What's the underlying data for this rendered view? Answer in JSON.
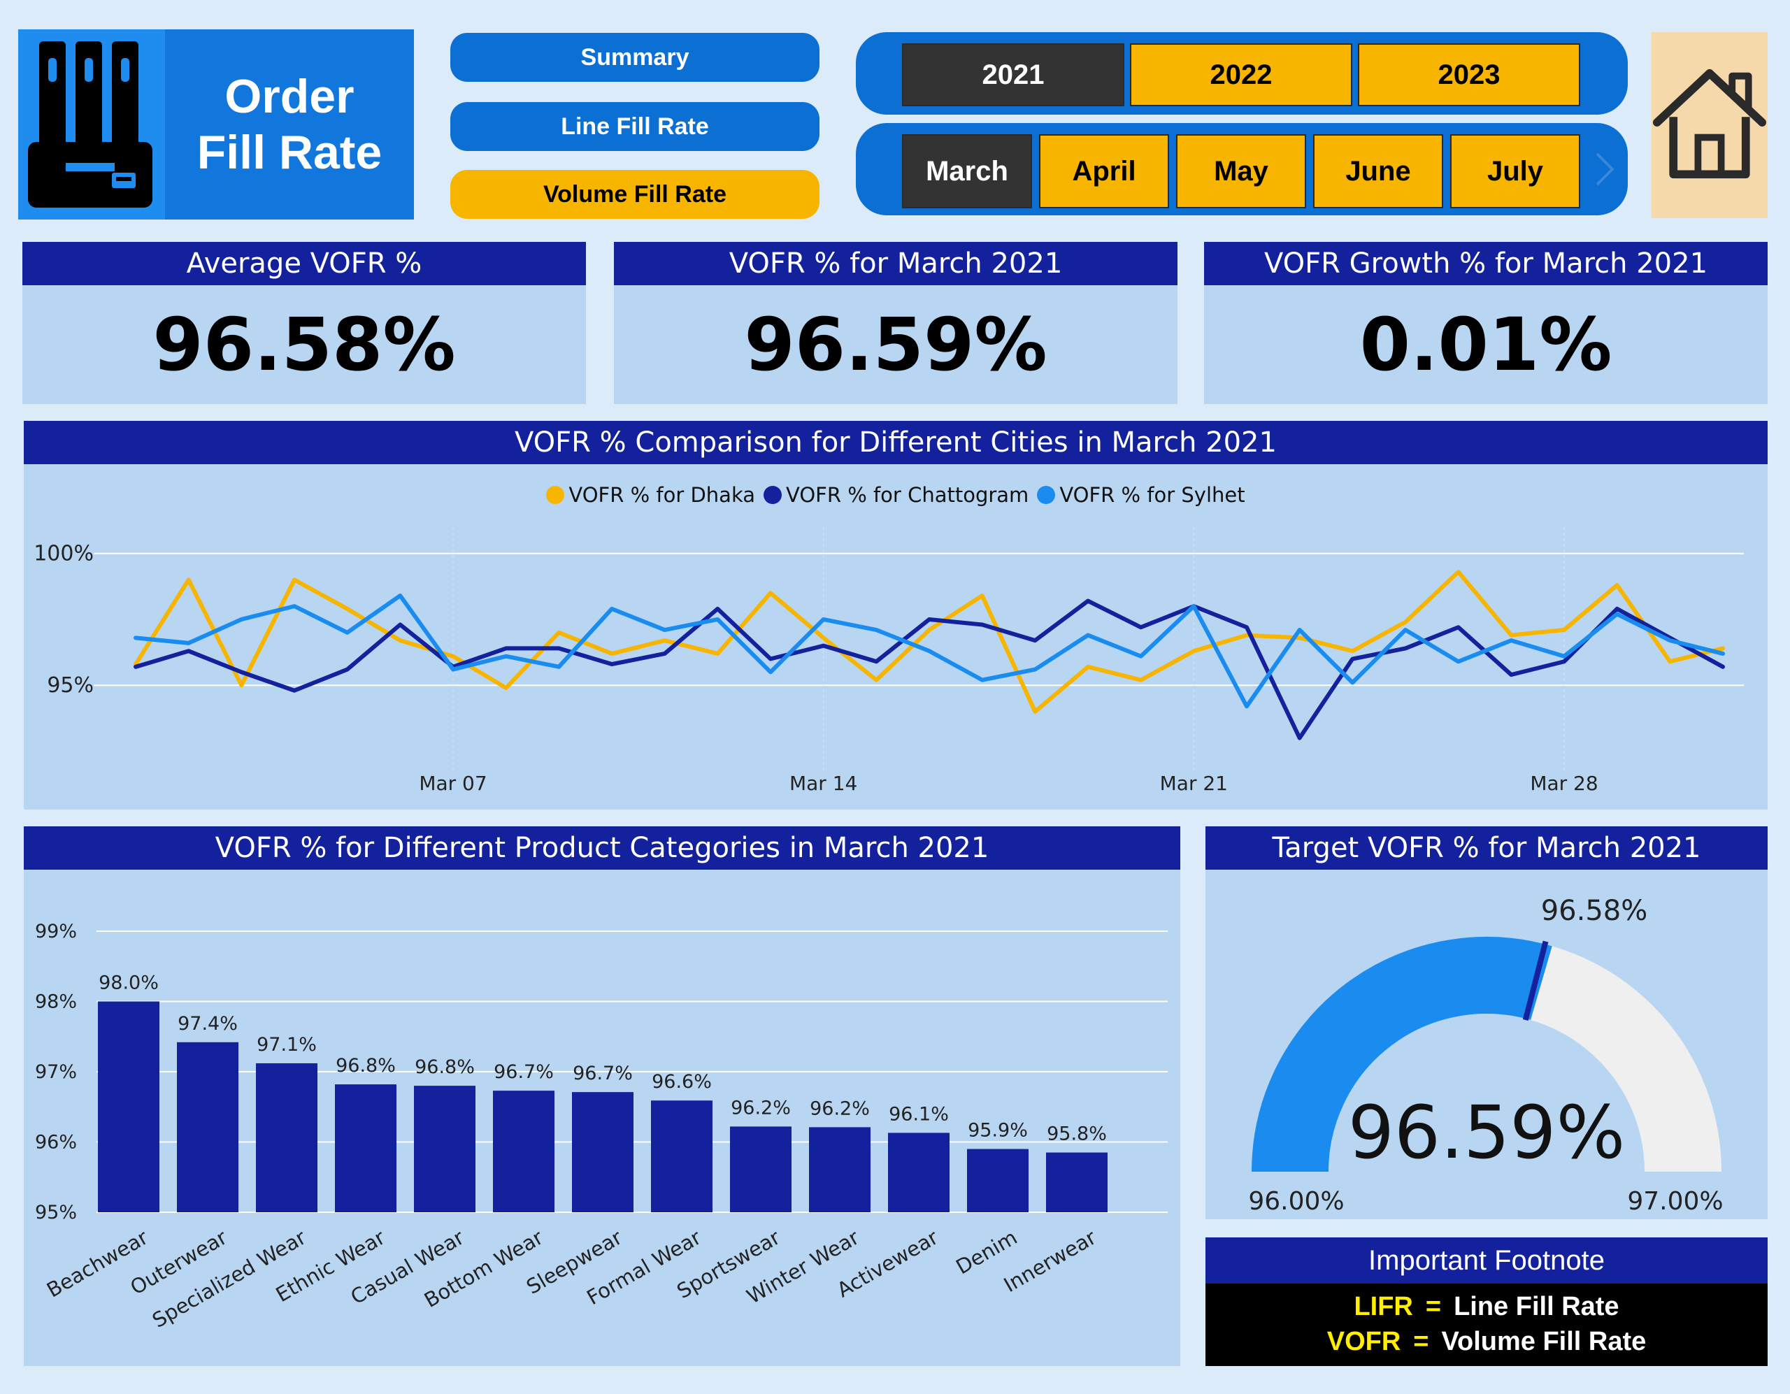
{
  "header": {
    "title_line1": "Order",
    "title_line2": "Fill Rate",
    "nav": [
      {
        "label": "Summary",
        "state": "inactive"
      },
      {
        "label": "Line Fill Rate",
        "state": "inactive"
      },
      {
        "label": "Volume Fill Rate",
        "state": "active"
      }
    ],
    "years": [
      "2021",
      "2022",
      "2023"
    ],
    "selected_year": "2021",
    "months": [
      "March",
      "April",
      "May",
      "June",
      "July"
    ],
    "selected_month": "March",
    "next_icon": "chevron-right-icon",
    "home_icon": "house-icon"
  },
  "kpis": [
    {
      "title": "Average VOFR %",
      "value": "96.58%"
    },
    {
      "title": "VOFR % for March 2021",
      "value": "96.59%"
    },
    {
      "title": "VOFR Growth % for March 2021",
      "value": "0.01%"
    }
  ],
  "colors": {
    "dhaka": "#f7b500",
    "chattogram": "#13219d",
    "sylhet": "#1a8cf0",
    "bar": "#13219d",
    "gauge_fill": "#1a8cf0",
    "gauge_empty": "#efefef",
    "gauge_marker": "#13219d"
  },
  "line_panel": {
    "title": "VOFR % Comparison for Different Cities in March 2021"
  },
  "bar_panel": {
    "title": "VOFR % for Different Product Categories in March 2021"
  },
  "gauge_panel": {
    "title": "Target VOFR % for March 2021"
  },
  "footnote": {
    "title": "Important Footnote",
    "items": [
      {
        "key": "LIFR",
        "eq": "=",
        "value": "Line Fill Rate"
      },
      {
        "key": "VOFR",
        "eq": "=",
        "value": "Volume Fill Rate"
      }
    ]
  },
  "chart_data": [
    {
      "type": "line",
      "title": "VOFR % Comparison for Different Cities in March 2021",
      "x": [
        "Mar 01",
        "Mar 02",
        "Mar 03",
        "Mar 04",
        "Mar 05",
        "Mar 06",
        "Mar 07",
        "Mar 08",
        "Mar 09",
        "Mar 10",
        "Mar 11",
        "Mar 12",
        "Mar 13",
        "Mar 14",
        "Mar 15",
        "Mar 16",
        "Mar 17",
        "Mar 18",
        "Mar 19",
        "Mar 20",
        "Mar 21",
        "Mar 22",
        "Mar 23",
        "Mar 24",
        "Mar 25",
        "Mar 26",
        "Mar 27",
        "Mar 28",
        "Mar 29",
        "Mar 30",
        "Mar 31"
      ],
      "x_ticks": [
        "Mar 07",
        "Mar 14",
        "Mar 21",
        "Mar 28"
      ],
      "y_ticks": [
        "100%",
        "95%"
      ],
      "ylim": [
        92.3,
        101.0
      ],
      "y_tick_values": [
        100,
        95
      ],
      "grid": true,
      "legend_position": "top-center",
      "series": [
        {
          "name": "VOFR % for Dhaka",
          "values": [
            95.8,
            99.0,
            95.0,
            99.0,
            97.9,
            96.7,
            96.1,
            94.9,
            97.0,
            96.2,
            96.7,
            96.2,
            98.5,
            96.8,
            95.2,
            97.1,
            98.4,
            94.0,
            95.7,
            95.2,
            96.3,
            96.9,
            96.8,
            96.3,
            97.4,
            99.3,
            96.9,
            97.1,
            98.8,
            95.9,
            96.4
          ]
        },
        {
          "name": "VOFR % for Chattogram",
          "values": [
            95.7,
            96.3,
            95.5,
            94.8,
            95.6,
            97.3,
            95.7,
            96.4,
            96.4,
            95.8,
            96.2,
            97.9,
            96.0,
            96.5,
            95.9,
            97.5,
            97.3,
            96.7,
            98.2,
            97.2,
            98.0,
            97.2,
            93.0,
            96.0,
            96.4,
            97.2,
            95.4,
            95.9,
            97.9,
            96.8,
            95.7
          ]
        },
        {
          "name": "VOFR % for Sylhet",
          "values": [
            96.8,
            96.6,
            97.5,
            98.0,
            97.0,
            98.4,
            95.6,
            96.1,
            95.7,
            97.9,
            97.1,
            97.5,
            95.5,
            97.5,
            97.1,
            96.3,
            95.2,
            95.6,
            96.9,
            96.1,
            98.0,
            94.2,
            97.1,
            95.1,
            97.1,
            95.9,
            96.7,
            96.1,
            97.7,
            96.7,
            96.2
          ]
        }
      ]
    },
    {
      "type": "bar",
      "title": "VOFR % for Different Product Categories in March 2021",
      "categories": [
        "Beachwear",
        "Outerwear",
        "Specialized Wear",
        "Ethnic Wear",
        "Casual Wear",
        "Bottom Wear",
        "Sleepwear",
        "Formal Wear",
        "Sportswear",
        "Winter Wear",
        "Activewear",
        "Denim",
        "Innerwear"
      ],
      "values": [
        98.0,
        97.42,
        97.12,
        96.82,
        96.8,
        96.73,
        96.71,
        96.59,
        96.22,
        96.21,
        96.13,
        95.9,
        95.85
      ],
      "data_labels": [
        "98.0%",
        "97.4%",
        "97.1%",
        "96.8%",
        "96.8%",
        "96.7%",
        "96.7%",
        "96.6%",
        "96.2%",
        "96.2%",
        "96.1%",
        "95.9%",
        "95.8%"
      ],
      "y_ticks": [
        "99%",
        "98%",
        "97%",
        "96%",
        "95%"
      ],
      "y_tick_values": [
        99,
        98,
        97,
        96,
        95
      ],
      "ylim": [
        95,
        99
      ],
      "grid": true
    },
    {
      "type": "gauge",
      "title": "Target VOFR % for March 2021",
      "value": 96.59,
      "value_label": "96.59%",
      "min": 96.0,
      "min_label": "96.00%",
      "max": 97.0,
      "max_label": "97.00%",
      "target": 96.58,
      "target_label": "96.58%"
    }
  ]
}
